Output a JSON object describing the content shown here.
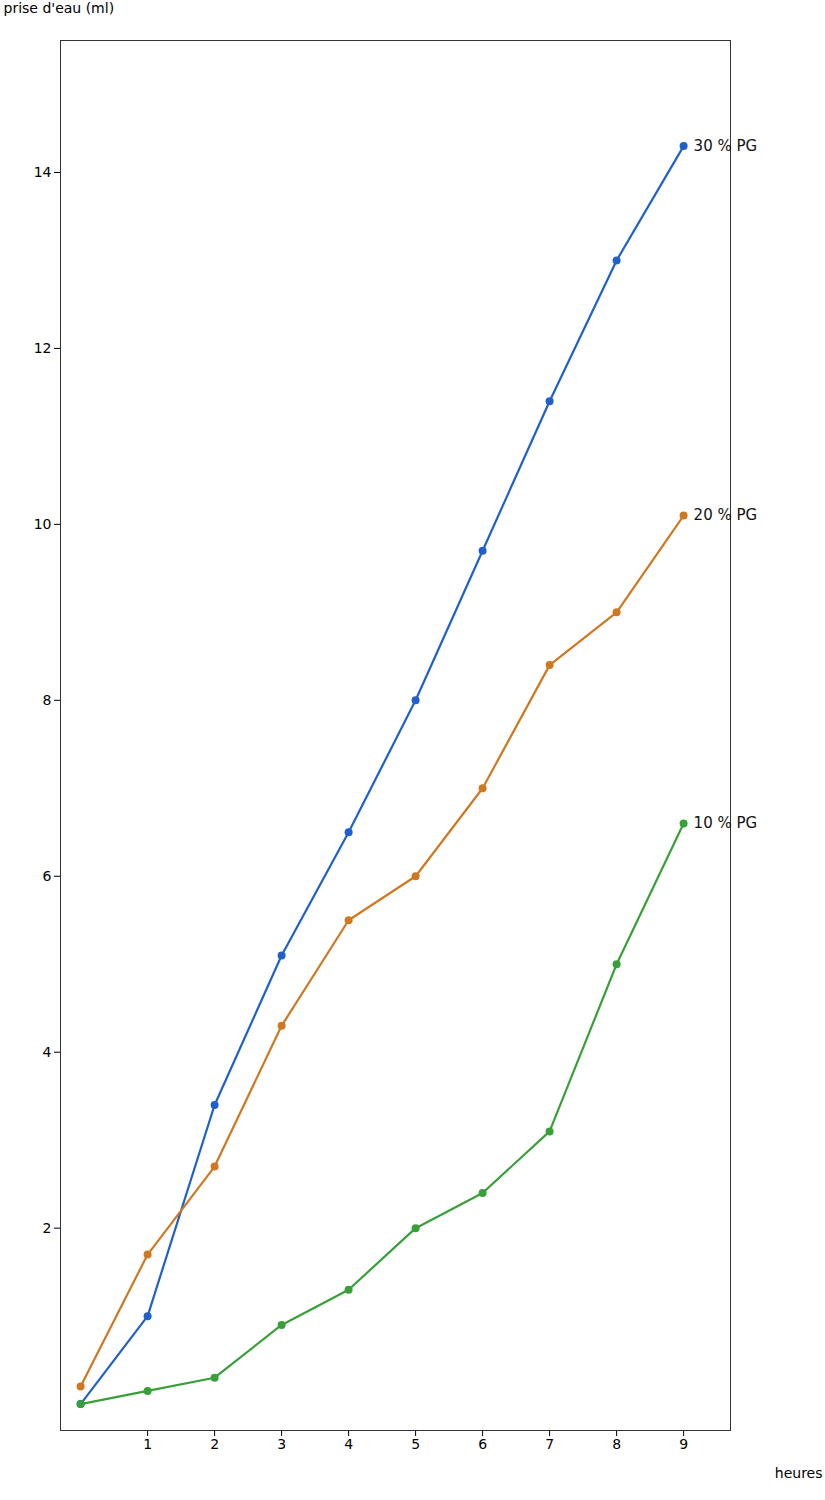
{
  "chart_data": {
    "type": "line",
    "x": [
      0,
      1,
      2,
      3,
      4,
      5,
      6,
      7,
      8,
      9
    ],
    "series": [
      {
        "name": "30 % PG",
        "color": "#2060cc",
        "values": [
          0,
          1.0,
          3.4,
          5.1,
          6.5,
          8.0,
          9.7,
          11.4,
          13.0,
          14.3
        ]
      },
      {
        "name": "20 % PG",
        "color": "#d07820",
        "values": [
          0.2,
          1.7,
          2.7,
          4.3,
          5.5,
          6.0,
          7.0,
          8.4,
          9.0,
          10.1
        ]
      },
      {
        "name": "10 % PG",
        "color": "#38a038",
        "values": [
          0.0,
          0.15,
          0.3,
          0.9,
          1.3,
          2.0,
          2.4,
          3.1,
          5.0,
          6.6
        ]
      }
    ],
    "xlabel": "heures",
    "ylabel": "prise d'eau (ml)",
    "xlim": [
      -0.3,
      9.7
    ],
    "ylim": [
      -0.3,
      15.5
    ],
    "xticks": [
      1,
      2,
      3,
      4,
      5,
      6,
      7,
      8,
      9
    ],
    "yticks": [
      2,
      4,
      6,
      8,
      10,
      12,
      14
    ],
    "grid": false,
    "marker": "o"
  }
}
